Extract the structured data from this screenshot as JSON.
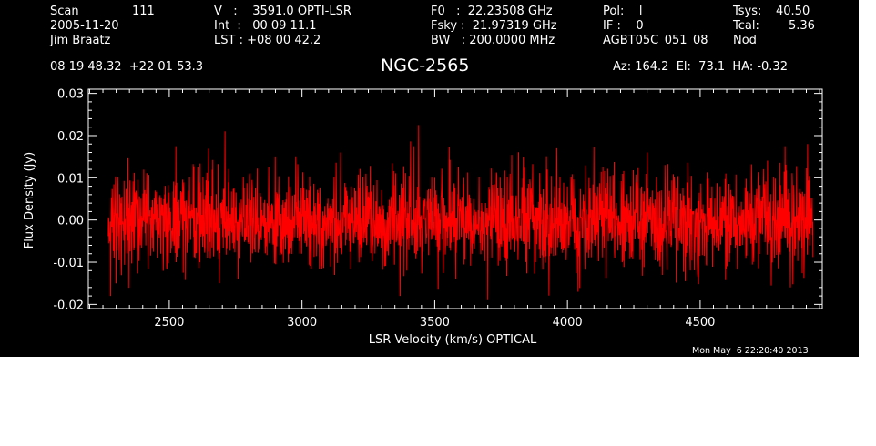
{
  "header": {
    "scan_label": "Scan",
    "scan_value": "111",
    "date": "2005-11-20",
    "observer": "Jim Braatz",
    "velocity_line": "V   :    3591.0 OPTI-LSR",
    "int_line": "Int  :   00 09 11.1",
    "lst_line": "LST : +08 00 42.2",
    "f0_line": "F0   :  22.23508 GHz",
    "fsky_line": "Fsky :  21.97319 GHz",
    "bw_line": "BW   : 200.0000 MHz",
    "pol_line": "Pol:    l",
    "if_line": "IF :    0",
    "project": "AGBT05C_051_08",
    "tsys_label": "Tsys:",
    "tsys_value": "40.50",
    "tcal_label": "Tcal:",
    "tcal_value": "5.36",
    "proc": "Nod",
    "coords": "08 19 48.32  +22 01 53.3",
    "source": "NGC-2565",
    "pointing": "Az: 164.2  El:  73.1  HA: -0.32"
  },
  "timestamp": "Mon May  6 22:20:40 2013",
  "colors": {
    "background": "#000000",
    "axes": "#ffffff",
    "series": "#ff0000"
  },
  "chart_data": {
    "type": "line",
    "xlabel": "LSR Velocity (km/s) OPTICAL",
    "ylabel": "Flux Density (Jy)",
    "xlim": [
      2195,
      4960
    ],
    "ylim": [
      -0.021,
      0.031
    ],
    "xticks": [
      2500,
      3000,
      3500,
      4000,
      4500
    ],
    "xtick_labels": [
      "2500",
      "3000",
      "3500",
      "4000",
      "4500"
    ],
    "yticks": [
      -0.02,
      -0.01,
      0.0,
      0.01,
      0.02,
      0.03
    ],
    "ytick_labels": [
      "-0.02",
      "-0.01",
      "0.00",
      "0.01",
      "0.02",
      "0.03"
    ],
    "grid": false,
    "series": [
      {
        "x_start": 2270,
        "x_end": 4925,
        "n_points": 2500,
        "mean": 0.0,
        "rms": 0.0055,
        "color": "#ff0000",
        "notable_points": [
          {
            "x": 2280,
            "y": -0.018
          },
          {
            "x": 2300,
            "y": -0.015
          },
          {
            "x": 2710,
            "y": 0.021
          },
          {
            "x": 2760,
            "y": -0.014
          },
          {
            "x": 3145,
            "y": 0.016
          },
          {
            "x": 3370,
            "y": -0.018
          },
          {
            "x": 3440,
            "y": 0.0225
          },
          {
            "x": 3700,
            "y": -0.019
          },
          {
            "x": 3960,
            "y": 0.017
          },
          {
            "x": 4040,
            "y": -0.017
          },
          {
            "x": 4300,
            "y": 0.016
          },
          {
            "x": 4820,
            "y": 0.0175
          },
          {
            "x": 4840,
            "y": -0.016
          },
          {
            "x": 4905,
            "y": 0.018
          }
        ]
      }
    ]
  }
}
